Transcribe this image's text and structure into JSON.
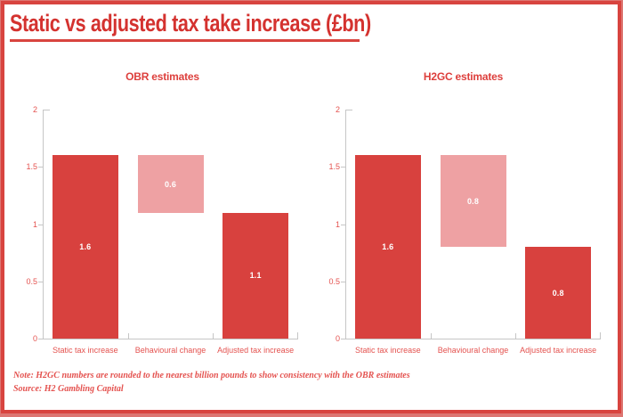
{
  "header": {
    "title": "Static vs adjusted tax take increase (£bn)"
  },
  "footer": {
    "note": "Note: H2GC numbers are rounded to the nearest billion pounds to show consistency with the OBR estimates",
    "source": "Source: H2 Gambling Capital"
  },
  "colors": {
    "bar_red": "#d8413e",
    "bar_pink": "#eea1a3",
    "title_red": "#d4322f",
    "label_red": "#e4524f",
    "axis_gray": "#c6c6c6",
    "border_red": "#d8443f",
    "bar_value_text": "#ffffff"
  },
  "chart_data": [
    {
      "type": "bar",
      "variant": "waterfall",
      "title": "OBR estimates",
      "categories": [
        "Static tax increase",
        "Behavioural change",
        "Adjusted tax increase"
      ],
      "series": [
        {
          "name": "Static tax increase",
          "base": 0,
          "top": 1.6,
          "value_label": "1.6",
          "color": "bar_red"
        },
        {
          "name": "Behavioural change",
          "base": 1.1,
          "top": 1.6,
          "value_label": "0.6",
          "color": "bar_pink"
        },
        {
          "name": "Adjusted tax increase",
          "base": 0,
          "top": 1.1,
          "value_label": "1.1",
          "color": "bar_red"
        }
      ],
      "ylim": [
        0,
        2
      ],
      "yticks": [
        0,
        0.5,
        1,
        1.5,
        2
      ],
      "grid": false,
      "legend": "none"
    },
    {
      "type": "bar",
      "variant": "waterfall",
      "title": "H2GC estimates",
      "categories": [
        "Static tax increase",
        "Behavioural change",
        "Adjusted tax increase"
      ],
      "series": [
        {
          "name": "Static tax increase",
          "base": 0,
          "top": 1.6,
          "value_label": "1.6",
          "color": "bar_red"
        },
        {
          "name": "Behavioural change",
          "base": 0.8,
          "top": 1.6,
          "value_label": "0.8",
          "color": "bar_pink"
        },
        {
          "name": "Adjusted tax increase",
          "base": 0,
          "top": 0.8,
          "value_label": "0.8",
          "color": "bar_red"
        }
      ],
      "ylim": [
        0,
        2
      ],
      "yticks": [
        0,
        0.5,
        1,
        1.5,
        2
      ],
      "grid": false,
      "legend": "none"
    }
  ]
}
